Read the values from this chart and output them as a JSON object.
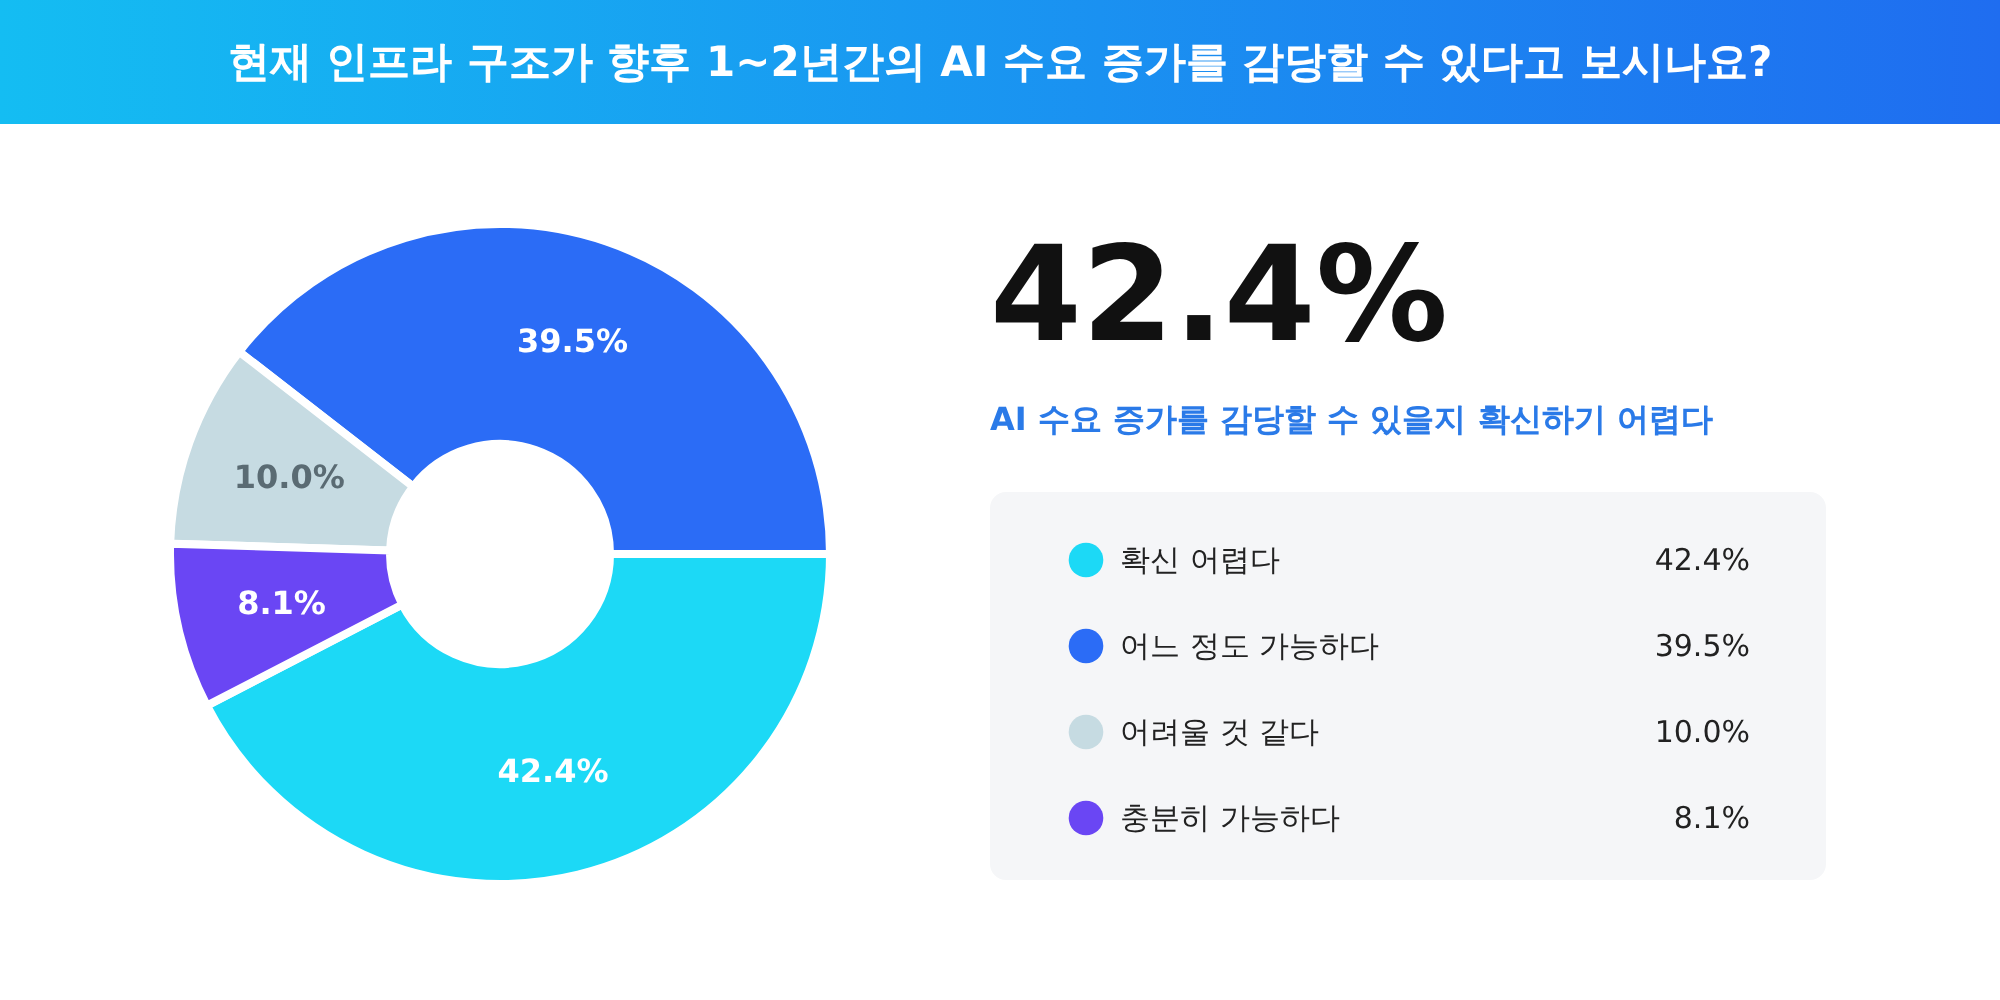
{
  "chart_data": {
    "type": "donut",
    "title": "현재 인프라 구조가 향후 1~2년간의 AI 수요 증가를 감당할 수 있다고 보시나요?",
    "categories": [
      "확신 어렵다",
      "어느 정도 가능하다",
      "어려울 것 같다",
      "충분히 가능하다"
    ],
    "values": [
      42.4,
      39.5,
      10.0,
      8.1
    ],
    "value_labels": [
      "42.4%",
      "39.5%",
      "10.0%",
      "8.1%"
    ],
    "colors": [
      "#1cd9f6",
      "#2b6cf6",
      "#c6dbe2",
      "#6a46f4"
    ],
    "legend": "right",
    "annotations": [
      "42.4%",
      "AI 수요 증가를 감당할 수 있을지 확신하기 어렵다"
    ]
  }
}
